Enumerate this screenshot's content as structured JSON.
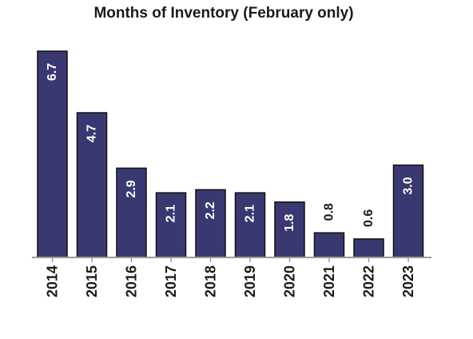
{
  "chart_data": {
    "type": "bar",
    "title": "Months of Inventory (February only)",
    "categories": [
      "2014",
      "2015",
      "2016",
      "2017",
      "2018",
      "2019",
      "2020",
      "2021",
      "2022",
      "2023"
    ],
    "values": [
      6.7,
      4.7,
      2.9,
      2.1,
      2.2,
      2.1,
      1.8,
      0.8,
      0.6,
      3.0
    ],
    "data_labels": [
      "6.7",
      "4.7",
      "2.9",
      "2.1",
      "2.2",
      "2.1",
      "1.8",
      "0.8",
      "0.6",
      "3.0"
    ],
    "xlabel": "",
    "ylabel": "",
    "ylim": [
      0,
      6.7
    ],
    "grid": false,
    "colors": {
      "bar": "#3a3870",
      "bar_edge": "#111111",
      "axis": "#9a9a9a"
    }
  }
}
